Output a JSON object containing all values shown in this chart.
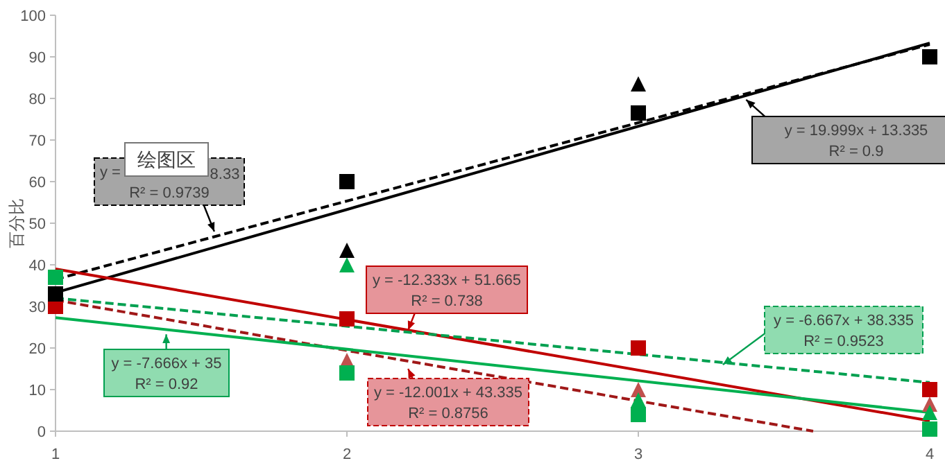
{
  "chart_data": {
    "type": "scatter",
    "ylabel": "百分比",
    "x": [
      1,
      2,
      3,
      4
    ],
    "xlim": [
      1,
      4
    ],
    "xticks": [
      1,
      2,
      3,
      4
    ],
    "ylim": [
      0,
      100
    ],
    "yticks": [
      0,
      10,
      20,
      30,
      40,
      50,
      60,
      70,
      80,
      90,
      100
    ],
    "grid": false,
    "series": [
      {
        "type": "line",
        "color": "#000000",
        "x": [
          1,
          4
        ],
        "values": [
          33.3,
          93.3
        ],
        "line_style": "solid",
        "marker": "none"
      },
      {
        "type": "line",
        "color": "#000000",
        "x": [
          1,
          4
        ],
        "values": [
          36.5,
          93
        ],
        "line_style": "dashed",
        "marker": "none"
      },
      {
        "type": "line",
        "color": "#c00000",
        "x": [
          1,
          4
        ],
        "values": [
          39,
          2.5
        ],
        "line_style": "solid",
        "marker": "none"
      },
      {
        "type": "line",
        "color": "#a01818",
        "x": [
          1,
          3.6
        ],
        "values": [
          31.5,
          0
        ],
        "line_style": "dashed",
        "marker": "none"
      },
      {
        "type": "line",
        "color": "#00b050",
        "x": [
          1,
          4
        ],
        "values": [
          27.3,
          4.5
        ],
        "line_style": "solid",
        "marker": "none"
      },
      {
        "type": "line",
        "color": "#00a050",
        "x": [
          1,
          4
        ],
        "values": [
          32,
          11.7
        ],
        "line_style": "dashed",
        "marker": "none"
      },
      {
        "color": "#c0504d",
        "values": [
          null,
          17,
          10,
          6.5
        ],
        "marker": "triangle"
      },
      {
        "color": "#00b050",
        "values": [
          null,
          40,
          7.5,
          4.5
        ],
        "marker": "triangle"
      },
      {
        "color": "#000000",
        "values": [
          null,
          43.5,
          83.5,
          null
        ],
        "marker": "triangle"
      },
      {
        "color": "#c00000",
        "values": [
          30,
          27,
          20,
          10
        ],
        "marker": "square"
      },
      {
        "color": "#00b050",
        "values": [
          37,
          14,
          4,
          0.5
        ],
        "marker": "square"
      },
      {
        "color": "#000000",
        "values": [
          33,
          60,
          76.5,
          90
        ],
        "marker": "square"
      }
    ],
    "annotations": [
      {
        "text": "y = 19.999x + 13.335\nR² = 0.9",
        "x": 3.37,
        "y": 79.7
      },
      {
        "text": "y =\nR² = 0.9739",
        "x": 1.545,
        "y": 48
      },
      {
        "text": "8.33"
      },
      {
        "text": "y = -12.333x + 51.665\nR² = 0.738",
        "x": 2.21,
        "y": 24.3
      },
      {
        "text": "y = -12.001x + 43.335\nR² = 0.8756",
        "x": 2.21,
        "y": 15
      },
      {
        "text": "y = -7.666x + 35\nR² = 0.92",
        "x": 1.38,
        "y": 23.3
      },
      {
        "text": "y = -6.667x + 38.335\nR² = 0.9523",
        "x": 3.29,
        "y": 16
      },
      {
        "text": "绘图区"
      }
    ]
  }
}
